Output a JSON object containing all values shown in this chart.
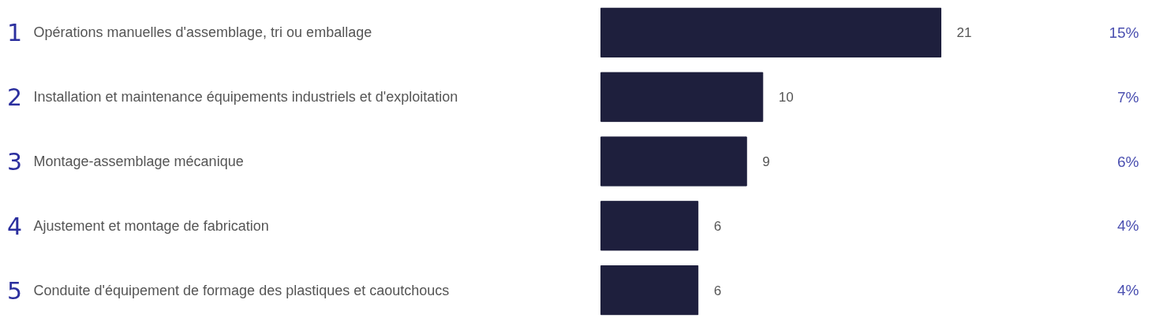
{
  "chart_data": {
    "type": "bar",
    "orientation": "horizontal",
    "categories": [
      "1 Opérations manuelles d'assemblage, tri ou emballage",
      "2 Installation et maintenance équipements industriels et d'exploitation",
      "3 Montage-assemblage mécanique",
      "4 Ajustement et montage de fabrication",
      "5 Conduite d'équipement de formage des plastiques et caoutchoucs"
    ],
    "values": [
      21,
      10,
      9,
      6,
      6
    ],
    "color": "#1e1f3d",
    "data_labels": true,
    "tick_labels": false,
    "annotations": [
      "15%",
      "7%",
      "6%",
      "4%",
      "4%"
    ]
  }
}
